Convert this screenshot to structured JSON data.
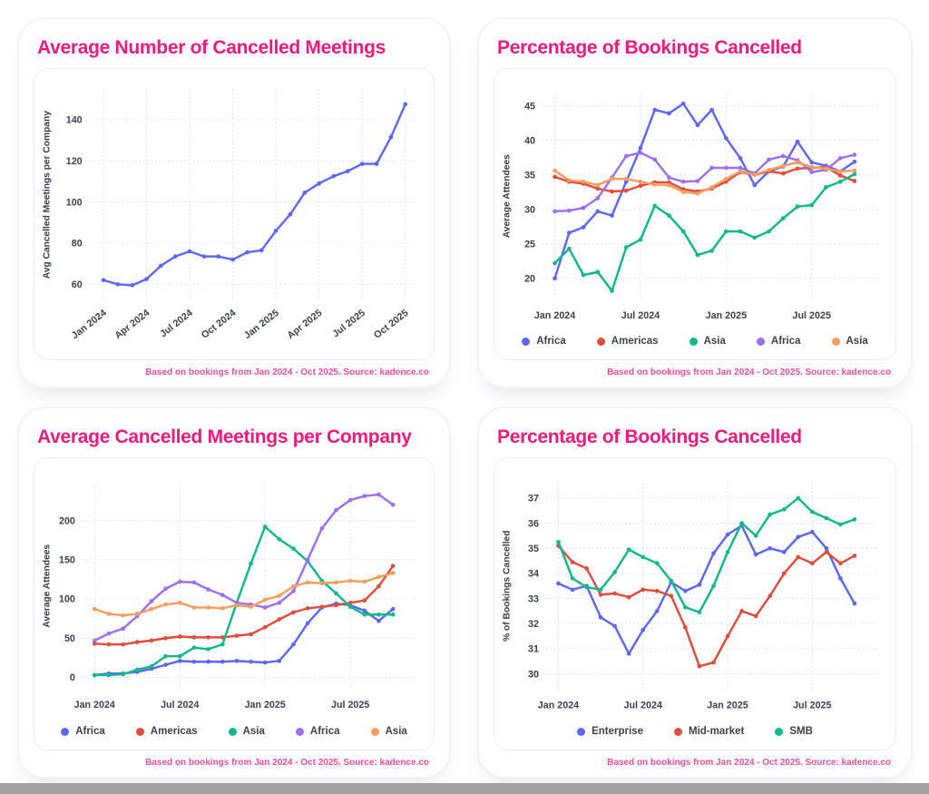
{
  "colors": {
    "title_pink": "#ec1b80",
    "footer_pink": "#f2509e",
    "blue": "#5c68f5",
    "red": "#e14d3b",
    "green": "#0fb98c",
    "purple": "#9f6ef7",
    "orange": "#f79d5e",
    "grid": "#e4e4ec",
    "axis_text": "#3a4150",
    "scrollbar_gray": "#a2a2a2"
  },
  "months": [
    "Jan 2024",
    "Feb 2024",
    "Mar 2024",
    "Apr 2024",
    "May 2024",
    "Jun 2024",
    "Jul 2024",
    "Aug 2024",
    "Sep 2024",
    "Oct 2024",
    "Nov 2024",
    "Dec 2024",
    "Jan 2025",
    "Feb 2025",
    "Mar 2025",
    "Apr 2025",
    "May 2025",
    "Jun 2025",
    "Jul 2025",
    "Aug 2025",
    "Sep 2025",
    "Oct 2025"
  ],
  "chart_data": [
    {
      "type": "line",
      "title": "Average Number of Cancelled Meetings",
      "ylabel": "Avg Cancelled Meetings per Company",
      "xlabel": "",
      "footer": "Based on bookings from Jan 2024 - Oct 2025. Source: kadence.co",
      "ylim": [
        52,
        155
      ],
      "yticks": [
        60,
        80,
        100,
        120,
        140
      ],
      "x_tick_indices": [
        0,
        3,
        6,
        9,
        12,
        15,
        18,
        21
      ],
      "x_tick_rotate": true,
      "grid": true,
      "legend_position": "none",
      "series": [
        {
          "name": "Avg Cancelled Meetings",
          "color_key": "blue",
          "values": [
            62,
            60,
            59.5,
            62.5,
            69,
            73.5,
            76,
            73.5,
            73.5,
            72,
            75.5,
            76.5,
            86,
            94,
            104.5,
            109,
            112.5,
            115,
            118.5,
            118.5,
            131.5,
            147.5
          ]
        }
      ]
    },
    {
      "type": "line",
      "title": "Percentage of Bookings Cancelled",
      "ylabel": "Average Attendees",
      "xlabel": "",
      "footer": "Based on bookings from Jan 2024 - Oct 2025. Source: kadence.co",
      "ylim": [
        17,
        46.8
      ],
      "yticks": [
        20,
        25,
        30,
        35,
        40,
        45
      ],
      "x_tick_indices": [
        0,
        6,
        12,
        18
      ],
      "x_tick_rotate": false,
      "grid": true,
      "legend_position": "bottom",
      "series": [
        {
          "name": "Africa",
          "color_key": "blue",
          "values": [
            20,
            26.6,
            27.4,
            29.7,
            29.1,
            34,
            38.9,
            44.4,
            43.9,
            45.3,
            42.2,
            44.4,
            40.3,
            37.4,
            33.5,
            35.5,
            36.2,
            39.8,
            36.8,
            36.3,
            35.5,
            36.9
          ]
        },
        {
          "name": "Americas",
          "color_key": "red",
          "values": [
            34.7,
            34,
            33.7,
            33,
            32.6,
            32.7,
            33.4,
            33.9,
            33.9,
            32.9,
            32.6,
            33,
            34,
            35.4,
            35,
            35.5,
            35.2,
            35.9,
            36,
            36.1,
            34.9,
            34.1
          ]
        },
        {
          "name": "Asia",
          "color_key": "green",
          "values": [
            22.2,
            24.3,
            20.5,
            20.9,
            18.2,
            24.5,
            25.6,
            30.5,
            29.1,
            26.8,
            23.4,
            24,
            26.8,
            26.8,
            25.9,
            26.8,
            28.7,
            30.4,
            30.6,
            33.2,
            34,
            35.1
          ]
        },
        {
          "name": "Africa",
          "color_key": "purple",
          "values": [
            29.7,
            29.8,
            30.2,
            31.6,
            34.6,
            37.7,
            38.2,
            37.2,
            34.6,
            34,
            34.1,
            36,
            36,
            36,
            35.2,
            37.2,
            37.7,
            37.1,
            35.4,
            35.7,
            37.4,
            37.9
          ]
        },
        {
          "name": "Asia",
          "color_key": "orange",
          "values": [
            35.6,
            34.2,
            34,
            33.5,
            34.4,
            34.4,
            34,
            33.6,
            33.5,
            32.5,
            32.3,
            33.2,
            34.4,
            35.5,
            35,
            35.7,
            36.3,
            36.8,
            36.1,
            35.9,
            35.5,
            35.6
          ]
        }
      ]
    },
    {
      "type": "line",
      "title": "Average Cancelled Meetings per Company",
      "ylabel": "Average Attendees",
      "xlabel": "",
      "footer": "Based on bookings from Jan 2024 - Oct 2025. Source: kadence.co",
      "ylim": [
        -14,
        247
      ],
      "yticks": [
        0,
        50,
        100,
        150,
        200
      ],
      "x_tick_indices": [
        0,
        6,
        12,
        18
      ],
      "x_tick_rotate": false,
      "grid": true,
      "legend_position": "bottom",
      "series": [
        {
          "name": "Africa",
          "color_key": "blue",
          "values": [
            3,
            5,
            5,
            7,
            11,
            16,
            21,
            20,
            20,
            20,
            21,
            20,
            19,
            21,
            42,
            69,
            89,
            94,
            92,
            85,
            72,
            87
          ]
        },
        {
          "name": "Americas",
          "color_key": "red",
          "values": [
            43,
            42,
            42,
            45,
            47,
            50,
            52,
            51,
            51,
            51,
            53,
            55,
            64,
            74,
            83,
            88,
            90,
            92,
            95,
            98,
            116,
            142
          ]
        },
        {
          "name": "Asia",
          "color_key": "green",
          "values": [
            3,
            3,
            4,
            10,
            14,
            27,
            27,
            38,
            36,
            42,
            95,
            145,
            192,
            176,
            164,
            148,
            123,
            107,
            90,
            80,
            80,
            80
          ]
        },
        {
          "name": "Africa",
          "color_key": "purple",
          "values": [
            47,
            56,
            62,
            78,
            97,
            113,
            122,
            121,
            112,
            105,
            95,
            93,
            89,
            95,
            110,
            150,
            190,
            213,
            226,
            231,
            233,
            220
          ]
        },
        {
          "name": "Asia",
          "color_key": "orange",
          "values": [
            87,
            81,
            79,
            81,
            87,
            93,
            95,
            89,
            89,
            88,
            92,
            90,
            99,
            104,
            116,
            121,
            120,
            121,
            123,
            122,
            128,
            133
          ]
        }
      ]
    },
    {
      "type": "line",
      "title": "Percentage of Bookings Cancelled",
      "ylabel": "% of Bookings Cancelled",
      "xlabel": "",
      "footer": "Based on bookings from Jan 2024 - Oct 2025. Source: kadence.co",
      "ylim": [
        29.4,
        37.6
      ],
      "yticks": [
        30,
        31,
        32,
        33,
        34,
        35,
        36,
        37
      ],
      "x_tick_indices": [
        0,
        6,
        12,
        18
      ],
      "x_tick_rotate": false,
      "grid": true,
      "legend_position": "bottom",
      "series": [
        {
          "name": "Enterprise",
          "color_key": "blue",
          "values": [
            33.6,
            33.35,
            33.5,
            32.25,
            31.9,
            30.8,
            31.75,
            32.5,
            33.65,
            33.3,
            33.55,
            34.8,
            35.55,
            35.9,
            34.75,
            35,
            34.85,
            35.45,
            35.65,
            35,
            33.8,
            32.8
          ]
        },
        {
          "name": "Mid-market",
          "color_key": "red",
          "values": [
            35.1,
            34.45,
            34.2,
            33.15,
            33.2,
            33.05,
            33.35,
            33.3,
            33.1,
            31.85,
            30.3,
            30.45,
            31.5,
            32.5,
            32.3,
            33.1,
            34,
            34.65,
            34.4,
            34.85,
            34.4,
            34.7
          ]
        },
        {
          "name": "SMB",
          "color_key": "green",
          "values": [
            35.25,
            33.8,
            33.45,
            33.35,
            34.05,
            34.95,
            34.65,
            34.4,
            33.7,
            32.65,
            32.45,
            33.5,
            34.85,
            36,
            35.5,
            36.35,
            36.55,
            37,
            36.45,
            36.2,
            35.95,
            36.15
          ]
        }
      ]
    }
  ]
}
